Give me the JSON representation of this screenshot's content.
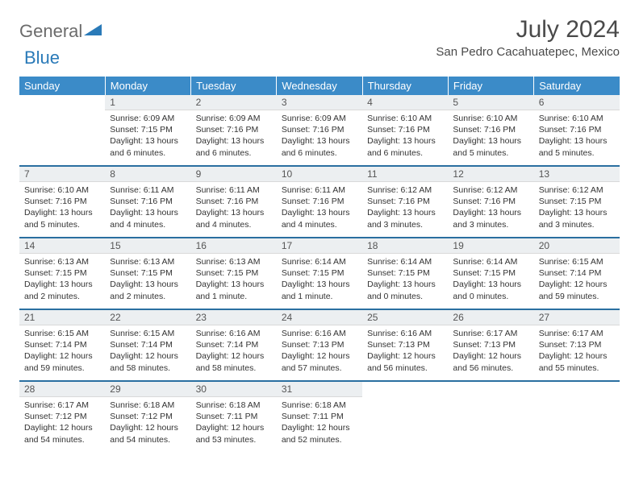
{
  "logo": {
    "general": "General",
    "blue": "Blue",
    "icon_color": "#2a7ab8"
  },
  "title": "July 2024",
  "location": "San Pedro Cacahuatepec, Mexico",
  "day_headers": [
    "Sunday",
    "Monday",
    "Tuesday",
    "Wednesday",
    "Thursday",
    "Friday",
    "Saturday"
  ],
  "colors": {
    "header_bg": "#3b8bc8",
    "header_text": "#ffffff",
    "daynum_bg": "#eceff1",
    "rule": "#2a6fa0",
    "text": "#333333",
    "title_text": "#4a4a4a"
  },
  "fonts": {
    "body_pt": 10.5,
    "title_pt": 30,
    "location_pt": 15,
    "header_pt": 13
  },
  "first_weekday_index": 1,
  "days": [
    {
      "n": 1,
      "sunrise": "6:09 AM",
      "sunset": "7:15 PM",
      "daylight": "13 hours and 6 minutes."
    },
    {
      "n": 2,
      "sunrise": "6:09 AM",
      "sunset": "7:16 PM",
      "daylight": "13 hours and 6 minutes."
    },
    {
      "n": 3,
      "sunrise": "6:09 AM",
      "sunset": "7:16 PM",
      "daylight": "13 hours and 6 minutes."
    },
    {
      "n": 4,
      "sunrise": "6:10 AM",
      "sunset": "7:16 PM",
      "daylight": "13 hours and 6 minutes."
    },
    {
      "n": 5,
      "sunrise": "6:10 AM",
      "sunset": "7:16 PM",
      "daylight": "13 hours and 5 minutes."
    },
    {
      "n": 6,
      "sunrise": "6:10 AM",
      "sunset": "7:16 PM",
      "daylight": "13 hours and 5 minutes."
    },
    {
      "n": 7,
      "sunrise": "6:10 AM",
      "sunset": "7:16 PM",
      "daylight": "13 hours and 5 minutes."
    },
    {
      "n": 8,
      "sunrise": "6:11 AM",
      "sunset": "7:16 PM",
      "daylight": "13 hours and 4 minutes."
    },
    {
      "n": 9,
      "sunrise": "6:11 AM",
      "sunset": "7:16 PM",
      "daylight": "13 hours and 4 minutes."
    },
    {
      "n": 10,
      "sunrise": "6:11 AM",
      "sunset": "7:16 PM",
      "daylight": "13 hours and 4 minutes."
    },
    {
      "n": 11,
      "sunrise": "6:12 AM",
      "sunset": "7:16 PM",
      "daylight": "13 hours and 3 minutes."
    },
    {
      "n": 12,
      "sunrise": "6:12 AM",
      "sunset": "7:16 PM",
      "daylight": "13 hours and 3 minutes."
    },
    {
      "n": 13,
      "sunrise": "6:12 AM",
      "sunset": "7:15 PM",
      "daylight": "13 hours and 3 minutes."
    },
    {
      "n": 14,
      "sunrise": "6:13 AM",
      "sunset": "7:15 PM",
      "daylight": "13 hours and 2 minutes."
    },
    {
      "n": 15,
      "sunrise": "6:13 AM",
      "sunset": "7:15 PM",
      "daylight": "13 hours and 2 minutes."
    },
    {
      "n": 16,
      "sunrise": "6:13 AM",
      "sunset": "7:15 PM",
      "daylight": "13 hours and 1 minute."
    },
    {
      "n": 17,
      "sunrise": "6:14 AM",
      "sunset": "7:15 PM",
      "daylight": "13 hours and 1 minute."
    },
    {
      "n": 18,
      "sunrise": "6:14 AM",
      "sunset": "7:15 PM",
      "daylight": "13 hours and 0 minutes."
    },
    {
      "n": 19,
      "sunrise": "6:14 AM",
      "sunset": "7:15 PM",
      "daylight": "13 hours and 0 minutes."
    },
    {
      "n": 20,
      "sunrise": "6:15 AM",
      "sunset": "7:14 PM",
      "daylight": "12 hours and 59 minutes."
    },
    {
      "n": 21,
      "sunrise": "6:15 AM",
      "sunset": "7:14 PM",
      "daylight": "12 hours and 59 minutes."
    },
    {
      "n": 22,
      "sunrise": "6:15 AM",
      "sunset": "7:14 PM",
      "daylight": "12 hours and 58 minutes."
    },
    {
      "n": 23,
      "sunrise": "6:16 AM",
      "sunset": "7:14 PM",
      "daylight": "12 hours and 58 minutes."
    },
    {
      "n": 24,
      "sunrise": "6:16 AM",
      "sunset": "7:13 PM",
      "daylight": "12 hours and 57 minutes."
    },
    {
      "n": 25,
      "sunrise": "6:16 AM",
      "sunset": "7:13 PM",
      "daylight": "12 hours and 56 minutes."
    },
    {
      "n": 26,
      "sunrise": "6:17 AM",
      "sunset": "7:13 PM",
      "daylight": "12 hours and 56 minutes."
    },
    {
      "n": 27,
      "sunrise": "6:17 AM",
      "sunset": "7:13 PM",
      "daylight": "12 hours and 55 minutes."
    },
    {
      "n": 28,
      "sunrise": "6:17 AM",
      "sunset": "7:12 PM",
      "daylight": "12 hours and 54 minutes."
    },
    {
      "n": 29,
      "sunrise": "6:18 AM",
      "sunset": "7:12 PM",
      "daylight": "12 hours and 54 minutes."
    },
    {
      "n": 30,
      "sunrise": "6:18 AM",
      "sunset": "7:11 PM",
      "daylight": "12 hours and 53 minutes."
    },
    {
      "n": 31,
      "sunrise": "6:18 AM",
      "sunset": "7:11 PM",
      "daylight": "12 hours and 52 minutes."
    }
  ],
  "labels": {
    "sunrise": "Sunrise:",
    "sunset": "Sunset:",
    "daylight": "Daylight:"
  }
}
